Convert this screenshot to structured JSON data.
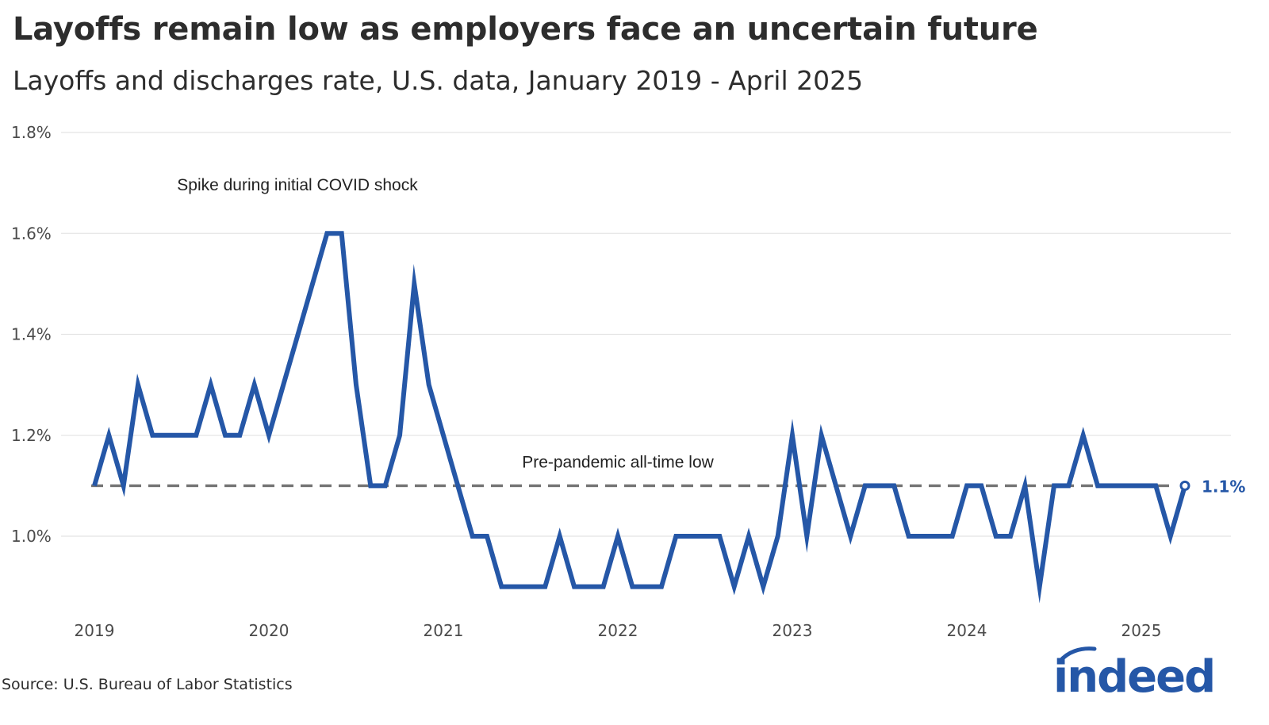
{
  "title": "Layoffs remain low as employers face an uncertain future",
  "subtitle": "Layoffs and discharges rate, U.S. data, January 2019 - April 2025",
  "source": "Source: U.S. Bureau of Labor Statistics",
  "logo_text": "indeed",
  "colors": {
    "line": "#2557a7",
    "reference": "#767676",
    "grid": "#e4e4e4",
    "text": "#2d2d2d"
  },
  "chart_data": {
    "type": "line",
    "title": "Layoffs remain low as employers face an uncertain future",
    "subtitle": "Layoffs and discharges rate, U.S. data, January 2019 - April 2025",
    "xlabel": "",
    "ylabel": "",
    "x_range": [
      "2019-01",
      "2025-04"
    ],
    "x_ticks": [
      "2019",
      "2020",
      "2021",
      "2022",
      "2023",
      "2024",
      "2025"
    ],
    "y_ticks": [
      "1.0%",
      "1.2%",
      "1.4%",
      "1.6%",
      "1.8%"
    ],
    "ylim": [
      0.9,
      1.8
    ],
    "grid": true,
    "x": [
      "2019-01",
      "2019-02",
      "2019-03",
      "2019-04",
      "2019-05",
      "2019-06",
      "2019-07",
      "2019-08",
      "2019-09",
      "2019-10",
      "2019-11",
      "2019-12",
      "2020-01",
      "2020-02",
      "2020-03",
      "2020-04",
      "2020-05",
      "2020-06",
      "2020-07",
      "2020-08",
      "2020-09",
      "2020-10",
      "2020-11",
      "2020-12",
      "2021-01",
      "2021-02",
      "2021-03",
      "2021-04",
      "2021-05",
      "2021-06",
      "2021-07",
      "2021-08",
      "2021-09",
      "2021-10",
      "2021-11",
      "2021-12",
      "2022-01",
      "2022-02",
      "2022-03",
      "2022-04",
      "2022-05",
      "2022-06",
      "2022-07",
      "2022-08",
      "2022-09",
      "2022-10",
      "2022-11",
      "2022-12",
      "2023-01",
      "2023-02",
      "2023-03",
      "2023-04",
      "2023-05",
      "2023-06",
      "2023-07",
      "2023-08",
      "2023-09",
      "2023-10",
      "2023-11",
      "2023-12",
      "2024-01",
      "2024-02",
      "2024-03",
      "2024-04",
      "2024-05",
      "2024-06",
      "2024-07",
      "2024-08",
      "2024-09",
      "2024-10",
      "2024-11",
      "2024-12",
      "2025-01",
      "2025-02",
      "2025-03",
      "2025-04"
    ],
    "series": [
      {
        "values": [
          1.1,
          1.2,
          1.1,
          1.3,
          1.2,
          1.2,
          1.2,
          1.2,
          1.3,
          1.2,
          1.2,
          1.3,
          1.2,
          1.3,
          1.4,
          1.5,
          1.6,
          1.6,
          1.3,
          1.1,
          1.1,
          1.2,
          1.5,
          1.3,
          1.2,
          1.1,
          1.0,
          1.0,
          0.9,
          0.9,
          0.9,
          0.9,
          1.0,
          0.9,
          0.9,
          0.9,
          1.0,
          0.9,
          0.9,
          0.9,
          1.0,
          1.0,
          1.0,
          1.0,
          0.9,
          1.0,
          0.9,
          1.0,
          1.2,
          1.0,
          1.2,
          1.1,
          1.0,
          1.1,
          1.1,
          1.1,
          1.0,
          1.0,
          1.0,
          1.0,
          1.1,
          1.1,
          1.0,
          1.0,
          1.1,
          0.9,
          1.1,
          1.1,
          1.2,
          1.1,
          1.1,
          1.1,
          1.1,
          1.1,
          1.0,
          1.1
        ]
      }
    ],
    "reference_line": {
      "value": 1.1,
      "label": "Pre-pandemic all-time low"
    },
    "annotations": [
      {
        "text": "Spike during initial COVID shock"
      }
    ],
    "end_label": "1.1%"
  }
}
